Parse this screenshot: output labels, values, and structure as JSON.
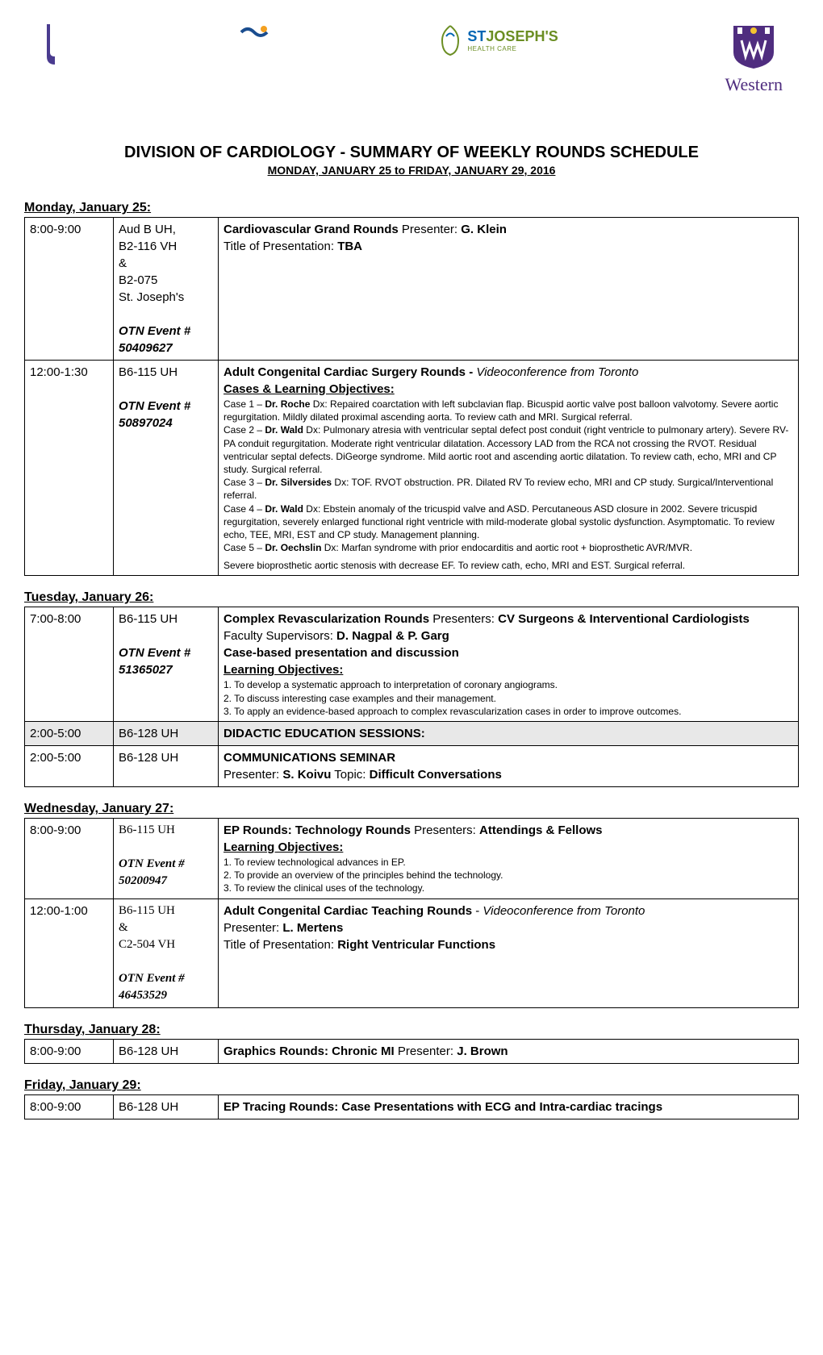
{
  "title": "DIVISION OF CARDIOLOGY - SUMMARY OF WEEKLY ROUNDS SCHEDULE",
  "subtitle": "MONDAY, JANUARY 25 to FRIDAY, JANUARY 29, 2016",
  "logos": {
    "western_text": "Western",
    "western_color": "#4f2d7f",
    "sj_st": "ST",
    "sj_joseph": "JOSEPH'S",
    "sj_sub": "HEALTH CARE"
  },
  "days": {
    "mon": {
      "header": "Monday, January 25:",
      "rows": [
        {
          "time": "8:00-9:00",
          "loc_lines": [
            "Aud B UH,",
            "B2-116 VH",
            "&",
            "B2-075",
            "St. Joseph's"
          ],
          "otn_label": "OTN Event #",
          "otn_num": "50409627",
          "body": {
            "line1_label": "Cardiovascular Grand Rounds",
            "line1_presenter_label": "  Presenter:  ",
            "line1_presenter": "G. Klein",
            "line2_label": "Title of Presentation:  ",
            "line2_val": "TBA"
          }
        },
        {
          "time": "12:00-1:30",
          "loc_lines": [
            "B6-115 UH"
          ],
          "otn_label": "OTN Event #",
          "otn_num": "50897024",
          "body": {
            "title": "Adult Congenital Cardiac Surgery Rounds - ",
            "title_italic": "Videoconference from Toronto",
            "cases_header": "Cases & Learning Objectives:",
            "case1": "Case 1 – Dr. Roche  Dx:  Repaired coarctation with left subclavian flap.  Bicuspid aortic valve post balloon valvotomy.  Severe aortic regurgitation.  Mildly dilated proximal ascending aorta.  To review cath and MRI.  Surgical referral.",
            "case2": "Case 2 – Dr. Wald  Dx:  Pulmonary atresia with ventricular septal defect post conduit (right ventricle to pulmonary artery). Severe RV-PA conduit regurgitation.  Moderate right ventricular dilatation.  Accessory LAD from the RCA not crossing the RVOT.  Residual ventricular septal defects.  DiGeorge syndrome.  Mild aortic root and ascending aortic dilatation.  To review cath, echo, MRI and CP study.  Surgical referral.",
            "case3": "Case 3 – Dr. Silversides  Dx:  TOF.  RVOT obstruction.  PR.   Dilated RV   To review echo, MRI and CP study.  Surgical/Interventional referral.",
            "case4": "Case 4 – Dr. Wald  Dx:  Ebstein anomaly of the tricuspid valve and ASD.  Percutaneous ASD closure in 2002.  Severe tricuspid regurgitation, severely enlarged functional right ventricle with mild-moderate global systolic dysfunction.  Asymptomatic.              To review echo, TEE, MRI, EST and CP study.  Management planning.",
            "case5": "Case 5 – Dr. Oechslin  Dx:  Marfan syndrome with prior endocarditis and aortic root + bioprosthetic AVR/MVR.",
            "footer": "Severe bioprosthetic aortic stenosis with decrease EF.  To review cath, echo, MRI and EST.  Surgical referral."
          }
        }
      ]
    },
    "tue": {
      "header": "Tuesday, January 26:",
      "rows": [
        {
          "time": "7:00-8:00",
          "loc_lines": [
            "B6-115 UH"
          ],
          "otn_label": "OTN Event #",
          "otn_num": "51365027",
          "body": {
            "title": "Complex Revascularization Rounds",
            "presenters_label": "  Presenters:  ",
            "presenters": "CV Surgeons & Interventional Cardiologists",
            "faculty_label": "Faculty Supervisors:  ",
            "faculty": "D. Nagpal & P. Garg",
            "line3": "Case-based presentation and discussion",
            "lo_header": "Learning Objectives:",
            "lo1": "1.  To develop a systematic approach to interpretation of coronary angiograms.",
            "lo2": "2.  To discuss interesting case examples and their management.",
            "lo3": "3.  To apply an evidence-based approach to complex revascularization cases in order to improve outcomes."
          }
        },
        {
          "time": "2:00-5:00",
          "loc": "B6-128 UH",
          "body": "DIDACTIC EDUCATION SESSIONS:",
          "shaded": true
        },
        {
          "time": "2:00-5:00",
          "loc": "B6-128 UH",
          "body_title": "COMMUNICATIONS SEMINAR",
          "body_presenter_label": "Presenter:  ",
          "body_presenter": "S. Koivu",
          "body_topic_label": "  Topic:  ",
          "body_topic": "Difficult Conversations"
        }
      ]
    },
    "wed": {
      "header": "Wednesday, January 27:",
      "rows": [
        {
          "time": "8:00-9:00",
          "loc_lines": [
            "B6-115 UH"
          ],
          "otn_label": "OTN Event #",
          "otn_num": "50200947",
          "body": {
            "title": "EP Rounds:  Technology Rounds",
            "presenters_label": "  Presenters:  ",
            "presenters": "Attendings & Fellows",
            "lo_header": "Learning Objectives:",
            "lo1": "1.  To review technological advances in EP.",
            "lo2": "2.  To provide an overview of the principles behind the technology.",
            "lo3": "3.  To review the clinical uses of the technology."
          }
        },
        {
          "time": "12:00-1:00",
          "loc_lines": [
            "B6-115 UH",
            "&",
            "C2-504 VH"
          ],
          "otn_label": "OTN Event #",
          "otn_num": "46453529",
          "body": {
            "title": "Adult Congenital Cardiac Teaching Rounds",
            "title_sep": " - ",
            "title_italic": "Videoconference from Toronto",
            "presenter_label": "Presenter:  ",
            "presenter": "L. Mertens",
            "pres_title_label": "Title of Presentation:  ",
            "pres_title": "Right Ventricular Functions"
          }
        }
      ]
    },
    "thu": {
      "header": "Thursday, January 28:",
      "rows": [
        {
          "time": "8:00-9:00",
          "loc": "B6-128 UH",
          "body_title": "Graphics Rounds:  Chronic MI",
          "body_presenter_label": "   Presenter:  ",
          "body_presenter": "J. Brown"
        }
      ]
    },
    "fri": {
      "header": "Friday, January 29:",
      "rows": [
        {
          "time": "8:00-9:00",
          "loc": "B6-128 UH",
          "body_title_pre": "EP Tracing Rounds",
          "body_title_post": ": Case Presentations with ECG and Intra-cardiac tracings"
        }
      ]
    }
  }
}
